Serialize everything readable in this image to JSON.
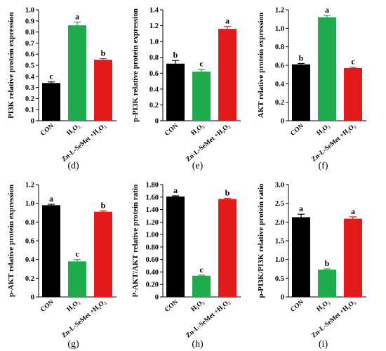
{
  "chart_data": [
    {
      "type": "bar",
      "panel_label": "(d)",
      "ylabel": "PI3K relative protein expression",
      "categories": [
        "CON",
        "H₂O₂",
        "Zn-L-SeMet +H₂O₂"
      ],
      "values": [
        0.34,
        0.86,
        0.55
      ],
      "errors": [
        0.01,
        0.03,
        0.01
      ],
      "letters": [
        "c",
        "a",
        "b"
      ],
      "colors": [
        "#000000",
        "#1faa4b",
        "#e31a1c"
      ],
      "ylim": [
        0,
        1.0
      ],
      "yticks": [
        "0",
        "0.1",
        "0.2",
        "0.3",
        "0.4",
        "0.5",
        "0.6",
        "0.7",
        "0.8",
        "0.9",
        "1.0"
      ]
    },
    {
      "type": "bar",
      "panel_label": "(e)",
      "ylabel": "p-PI3K relative protein expression",
      "categories": [
        "CON",
        "H₂O₂",
        "Zn-L-SeMet +H₂O₂"
      ],
      "values": [
        0.72,
        0.62,
        1.16
      ],
      "errors": [
        0.04,
        0.03,
        0.03
      ],
      "letters": [
        "b",
        "c",
        "a"
      ],
      "colors": [
        "#000000",
        "#1faa4b",
        "#e31a1c"
      ],
      "ylim": [
        0,
        1.4
      ],
      "yticks": [
        "0",
        "0.2",
        "0.4",
        "0.6",
        "0.8",
        "1.0",
        "1.2",
        "1.4"
      ]
    },
    {
      "type": "bar",
      "panel_label": "(f)",
      "ylabel": "AKT relative protein expression",
      "categories": [
        "CON",
        "H₂O₂",
        "Zn-L-SeMet +H₂O₂"
      ],
      "values": [
        0.61,
        1.12,
        0.57
      ],
      "errors": [
        0.01,
        0.02,
        0.01
      ],
      "letters": [
        "b",
        "a",
        "c"
      ],
      "colors": [
        "#000000",
        "#1faa4b",
        "#e31a1c"
      ],
      "ylim": [
        0,
        1.2
      ],
      "yticks": [
        "0",
        "0.2",
        "0.4",
        "0.6",
        "0.8",
        "1.0",
        "1.2"
      ]
    },
    {
      "type": "bar",
      "panel_label": "(g)",
      "ylabel": "p-AKT relative protein expression",
      "categories": [
        "CON",
        "H₂O₂",
        "Zn-L-SeMet +H₂O₂"
      ],
      "values": [
        0.98,
        0.38,
        0.91
      ],
      "errors": [
        0.01,
        0.02,
        0.01
      ],
      "letters": [
        "a",
        "c",
        "b"
      ],
      "colors": [
        "#000000",
        "#1faa4b",
        "#e31a1c"
      ],
      "ylim": [
        0,
        1.2
      ],
      "yticks": [
        "0",
        "0.2",
        "0.4",
        "0.6",
        "0.8",
        "1.0",
        "1.2"
      ]
    },
    {
      "type": "bar",
      "panel_label": "(h)",
      "ylabel": "P-AKT/AKT relative protein ratio",
      "categories": [
        "CON",
        "H₂O₂",
        "Zn-L-SeMet +H₂O₂"
      ],
      "values": [
        1.61,
        0.34,
        1.57
      ],
      "errors": [
        0.01,
        0.01,
        0.01
      ],
      "letters": [
        "a",
        "c",
        "b"
      ],
      "colors": [
        "#000000",
        "#1faa4b",
        "#e31a1c"
      ],
      "ylim": [
        0,
        1.8
      ],
      "yticks": [
        "0",
        "0.20",
        "0.40",
        "0.60",
        "0.80",
        "1.00",
        "1.20",
        "1.40",
        "1.60",
        "1.80"
      ]
    },
    {
      "type": "bar",
      "panel_label": "(i)",
      "ylabel": "p-PI3K/PI3K relative protein ratio",
      "categories": [
        "CON",
        "H₂O₂",
        "Zn-L-SeMet +H₂O₂"
      ],
      "values": [
        2.13,
        0.73,
        2.09
      ],
      "errors": [
        0.08,
        0.02,
        0.05
      ],
      "letters": [
        "a",
        "b",
        "a"
      ],
      "colors": [
        "#000000",
        "#1faa4b",
        "#e31a1c"
      ],
      "ylim": [
        0,
        3.0
      ],
      "yticks": [
        "0",
        "0.5",
        "1.0",
        "1.5",
        "2.0",
        "2.5",
        "3.0"
      ]
    }
  ]
}
